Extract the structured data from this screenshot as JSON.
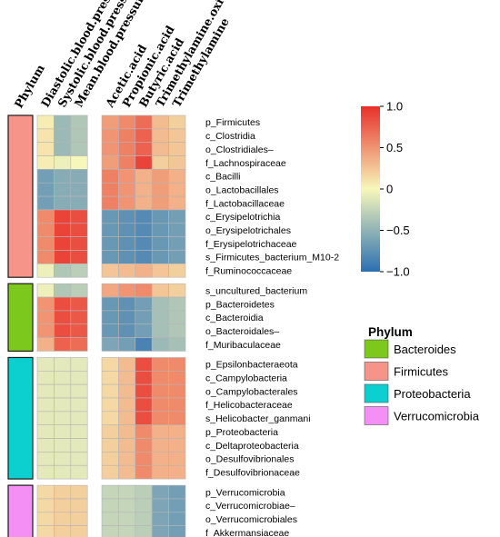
{
  "chart_data": {
    "type": "heatmap",
    "title": "",
    "phylum_axis_label": "Phylum",
    "columns": [
      "Diastolic.blood.pressure",
      "Systolic.blood.pressure",
      "Mean.blood.pressure",
      "Acetic.acid",
      "Propionic.acid",
      "Butyric.acid",
      "Trimethylamine.oxide",
      "Trimethylamine"
    ],
    "color_scale": {
      "min": -1.0,
      "max": 1.0,
      "ticks": [
        {
          "value": 1.0,
          "label": "1.0"
        },
        {
          "value": 0.5,
          "label": "0.5"
        },
        {
          "value": 0,
          "label": "0"
        },
        {
          "value": -0.5,
          "label": "−0.5"
        },
        {
          "value": -1.0,
          "label": "−1.0"
        }
      ],
      "colors": [
        "#2b6fb1",
        "#f7f7bb",
        "#e8302a"
      ]
    },
    "groups": [
      {
        "phylum": "Firmicutes",
        "color": "#f6948a",
        "rows": [
          {
            "label": "p_Firmicutes",
            "values": [
              0.05,
              -0.45,
              -0.35,
              0.45,
              0.55,
              0.7,
              0.3,
              0.2
            ]
          },
          {
            "label": "c_Clostridia",
            "values": [
              0.1,
              -0.45,
              -0.35,
              0.5,
              0.6,
              0.75,
              0.3,
              0.25
            ]
          },
          {
            "label": "o_Clostridiales–",
            "values": [
              0.1,
              -0.45,
              -0.35,
              0.5,
              0.6,
              0.75,
              0.3,
              0.25
            ]
          },
          {
            "label": "f_Lachnospiraceae",
            "values": [
              0.05,
              -0.05,
              0.0,
              0.45,
              0.6,
              0.9,
              0.2,
              0.25
            ]
          },
          {
            "label": "c_Bacilli",
            "values": [
              -0.65,
              -0.55,
              -0.55,
              0.6,
              0.5,
              0.35,
              0.45,
              0.35
            ]
          },
          {
            "label": "o_Lactobacillales",
            "values": [
              -0.65,
              -0.55,
              -0.55,
              0.6,
              0.5,
              0.35,
              0.45,
              0.35
            ]
          },
          {
            "label": "f_Lactobacillaceae",
            "values": [
              -0.65,
              -0.55,
              -0.55,
              0.6,
              0.5,
              0.35,
              0.45,
              0.35
            ]
          },
          {
            "label": "c_Erysipelotrichia",
            "values": [
              0.55,
              0.9,
              0.85,
              -0.7,
              -0.75,
              -0.8,
              -0.7,
              -0.65
            ]
          },
          {
            "label": "o_Erysipelotrichales",
            "values": [
              0.55,
              0.9,
              0.85,
              -0.7,
              -0.75,
              -0.8,
              -0.7,
              -0.65
            ]
          },
          {
            "label": "f_Erysipelotrichaceae",
            "values": [
              0.55,
              0.9,
              0.85,
              -0.7,
              -0.75,
              -0.8,
              -0.7,
              -0.65
            ]
          },
          {
            "label": "s_Firmicutes_bacterium_M10-2",
            "values": [
              0.55,
              0.9,
              0.85,
              -0.7,
              -0.75,
              -0.8,
              -0.7,
              -0.65
            ]
          },
          {
            "label": "f_Ruminococcaceae",
            "values": [
              -0.05,
              -0.35,
              -0.3,
              0.25,
              0.3,
              0.35,
              0.25,
              0.2
            ]
          }
        ]
      },
      {
        "phylum": "Bacteroides",
        "color": "#7dc81c",
        "rows": [
          {
            "label": "s_uncultured_bacterium",
            "values": [
              -0.05,
              -0.35,
              -0.3,
              0.4,
              0.5,
              0.55,
              0.25,
              0.2
            ]
          },
          {
            "label": "p_Bacteroidetes",
            "values": [
              0.5,
              0.85,
              0.8,
              -0.7,
              -0.75,
              -0.65,
              -0.4,
              -0.35
            ]
          },
          {
            "label": "c_Bacteroidia",
            "values": [
              0.5,
              0.85,
              0.8,
              -0.7,
              -0.75,
              -0.65,
              -0.4,
              -0.35
            ]
          },
          {
            "label": "o_Bacteroidales–",
            "values": [
              0.5,
              0.85,
              0.8,
              -0.7,
              -0.75,
              -0.65,
              -0.4,
              -0.35
            ]
          },
          {
            "label": "f_Muribaculaceae",
            "values": [
              0.35,
              0.75,
              0.7,
              -0.6,
              -0.65,
              -0.85,
              -0.45,
              -0.4
            ]
          }
        ]
      },
      {
        "phylum": "Proteobacteria",
        "color": "#0ccfcf",
        "rows": [
          {
            "label": "p_Epsilonbacteraeota",
            "values": [
              -0.1,
              -0.1,
              -0.1,
              0.15,
              0.3,
              0.85,
              0.55,
              0.55
            ]
          },
          {
            "label": "c_Campylobacteria",
            "values": [
              -0.1,
              -0.1,
              -0.1,
              0.15,
              0.3,
              0.85,
              0.55,
              0.55
            ]
          },
          {
            "label": "o_Campylobacterales",
            "values": [
              -0.1,
              -0.1,
              -0.1,
              0.15,
              0.3,
              0.85,
              0.55,
              0.55
            ]
          },
          {
            "label": "f_Helicobacteraceae",
            "values": [
              -0.1,
              -0.1,
              -0.1,
              0.15,
              0.3,
              0.85,
              0.55,
              0.55
            ]
          },
          {
            "label": "s_Helicobacter_ganmani",
            "values": [
              -0.1,
              -0.1,
              -0.1,
              0.15,
              0.3,
              0.85,
              0.55,
              0.55
            ]
          },
          {
            "label": "p_Proteobacteria",
            "values": [
              -0.1,
              -0.1,
              -0.1,
              0.2,
              0.3,
              0.55,
              0.35,
              0.35
            ]
          },
          {
            "label": "c_Deltaproteobacteria",
            "values": [
              -0.1,
              -0.1,
              -0.1,
              0.2,
              0.3,
              0.55,
              0.35,
              0.35
            ]
          },
          {
            "label": "o_Desulfovibrionales",
            "values": [
              -0.1,
              -0.1,
              -0.1,
              0.2,
              0.3,
              0.55,
              0.35,
              0.35
            ]
          },
          {
            "label": "f_Desulfovibrionaceae",
            "values": [
              -0.1,
              -0.1,
              -0.1,
              0.2,
              0.3,
              0.55,
              0.35,
              0.35
            ]
          }
        ]
      },
      {
        "phylum": "Verrucomicrobia",
        "color": "#f38ff5",
        "rows": [
          {
            "label": "p_Verrucomicrobia",
            "values": [
              0.15,
              0.2,
              0.2,
              -0.25,
              -0.25,
              -0.3,
              -0.6,
              -0.65
            ]
          },
          {
            "label": "c_Verrucomicrobiae–",
            "values": [
              0.15,
              0.2,
              0.2,
              -0.25,
              -0.25,
              -0.3,
              -0.6,
              -0.65
            ]
          },
          {
            "label": "o_Verrucomicrobiales",
            "values": [
              0.15,
              0.2,
              0.2,
              -0.25,
              -0.25,
              -0.3,
              -0.6,
              -0.65
            ]
          },
          {
            "label": "f_Akkermansiaceae",
            "values": [
              0.15,
              0.2,
              0.2,
              -0.25,
              -0.25,
              -0.3,
              -0.6,
              -0.65
            ]
          }
        ]
      }
    ],
    "legend": {
      "title": "Phylum",
      "position": "right",
      "items": [
        {
          "label": "Bacteroides",
          "color": "#7dc81c"
        },
        {
          "label": "Firmicutes",
          "color": "#f6948a"
        },
        {
          "label": "Proteobacteria",
          "color": "#0ccfcf"
        },
        {
          "label": "Verrucomicrobia",
          "color": "#f38ff5"
        }
      ]
    }
  }
}
